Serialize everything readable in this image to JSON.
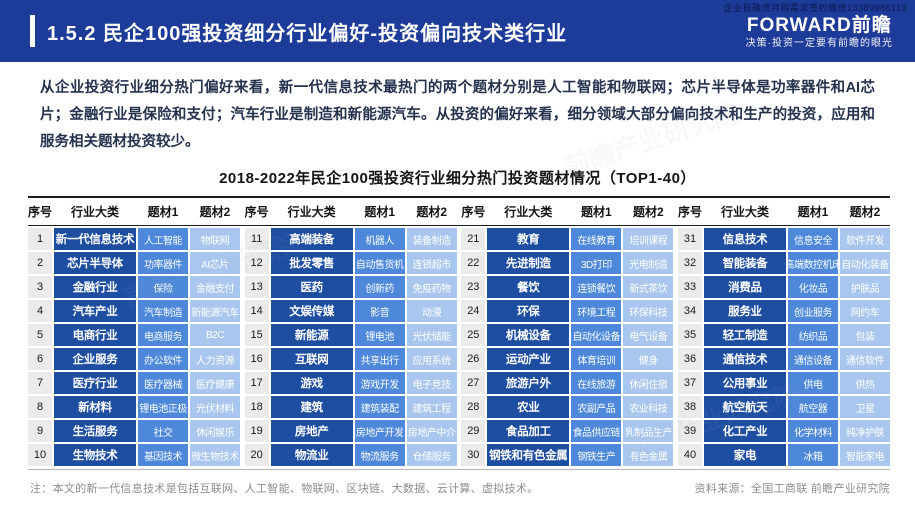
{
  "header": {
    "title": "1.5.2 民企100强投资细分行业偏好-投资偏向技术类行业",
    "contact": "企业投融资并购需求签约微信13389986113",
    "logo": "FORWARD前瞻",
    "tagline": "决策·投资一定要有前瞻的眼光"
  },
  "intro": "从企业投资行业细分热门偏好来看，新一代信息技术最热门的两个题材分别是人工智能和物联网；芯片半导体是功率器件和AI芯片；金融行业是保险和支付；汽车行业是制造和新能源汽车。从投资的偏好来看，细分领域大部分偏向技术和生产的投资，应用和服务相关题材投资较少。",
  "table": {
    "title": "2018-2022年民企100强投资行业细分热门投资题材情况（TOP1-40）",
    "headers": [
      "序号",
      "行业大类",
      "题材1",
      "题材2"
    ],
    "groups": [
      [
        {
          "no": "1",
          "category": "新一代信息技术",
          "topic1": "人工智能",
          "topic2": "物联网"
        },
        {
          "no": "2",
          "category": "芯片半导体",
          "topic1": "功率器件",
          "topic2": "AI芯片"
        },
        {
          "no": "3",
          "category": "金融行业",
          "topic1": "保险",
          "topic2": "金融支付"
        },
        {
          "no": "4",
          "category": "汽车产业",
          "topic1": "汽车制造",
          "topic2": "新能源汽车"
        },
        {
          "no": "5",
          "category": "电商行业",
          "topic1": "电商服务",
          "topic2": "B2C"
        },
        {
          "no": "6",
          "category": "企业服务",
          "topic1": "办公软件",
          "topic2": "人力资源"
        },
        {
          "no": "7",
          "category": "医疗行业",
          "topic1": "医疗器械",
          "topic2": "医疗健康"
        },
        {
          "no": "8",
          "category": "新材料",
          "topic1": "锂电池正极",
          "topic2": "光伏材料"
        },
        {
          "no": "9",
          "category": "生活服务",
          "topic1": "社交",
          "topic2": "休闲娱乐"
        },
        {
          "no": "10",
          "category": "生物技术",
          "topic1": "基因技术",
          "topic2": "微生物技术"
        }
      ],
      [
        {
          "no": "11",
          "category": "高端装备",
          "topic1": "机器人",
          "topic2": "装备制造"
        },
        {
          "no": "12",
          "category": "批发零售",
          "topic1": "自动售货机",
          "topic2": "连锁超市"
        },
        {
          "no": "13",
          "category": "医药",
          "topic1": "创新药",
          "topic2": "免疫药物"
        },
        {
          "no": "14",
          "category": "文娱传媒",
          "topic1": "影音",
          "topic2": "动漫"
        },
        {
          "no": "15",
          "category": "新能源",
          "topic1": "锂电池",
          "topic2": "光伏储能"
        },
        {
          "no": "16",
          "category": "互联网",
          "topic1": "共享出行",
          "topic2": "应用系统"
        },
        {
          "no": "17",
          "category": "游戏",
          "topic1": "游戏开发",
          "topic2": "电子竞技"
        },
        {
          "no": "18",
          "category": "建筑",
          "topic1": "建筑装配",
          "topic2": "建筑工程"
        },
        {
          "no": "19",
          "category": "房地产",
          "topic1": "房地产开发",
          "topic2": "房地产中介"
        },
        {
          "no": "20",
          "category": "物流业",
          "topic1": "物流服务",
          "topic2": "仓储服务"
        }
      ],
      [
        {
          "no": "21",
          "category": "教育",
          "topic1": "在线教育",
          "topic2": "培训课程"
        },
        {
          "no": "22",
          "category": "先进制造",
          "topic1": "3D打印",
          "topic2": "光电制造"
        },
        {
          "no": "23",
          "category": "餐饮",
          "topic1": "连锁餐饮",
          "topic2": "新式茶饮"
        },
        {
          "no": "24",
          "category": "环保",
          "topic1": "环境工程",
          "topic2": "环保科技"
        },
        {
          "no": "25",
          "category": "机械设备",
          "topic1": "自动化设备",
          "topic2": "电气设备"
        },
        {
          "no": "26",
          "category": "运动产业",
          "topic1": "体育培训",
          "topic2": "健身"
        },
        {
          "no": "27",
          "category": "旅游户外",
          "topic1": "在线旅游",
          "topic2": "休闲住宿"
        },
        {
          "no": "28",
          "category": "农业",
          "topic1": "农副产品",
          "topic2": "农业科技"
        },
        {
          "no": "29",
          "category": "食品加工",
          "topic1": "食品供应链",
          "topic2": "乳制品生产"
        },
        {
          "no": "30",
          "category": "钢铁和有色金属",
          "topic1": "钢铁生产",
          "topic2": "有色金属"
        }
      ],
      [
        {
          "no": "31",
          "category": "信息技术",
          "topic1": "信息安全",
          "topic2": "软件开发"
        },
        {
          "no": "32",
          "category": "智能装备",
          "topic1": "高端数控机床",
          "topic2": "自动化装备"
        },
        {
          "no": "33",
          "category": "消费品",
          "topic1": "化妆品",
          "topic2": "护肤品"
        },
        {
          "no": "34",
          "category": "服务业",
          "topic1": "创业服务",
          "topic2": "网约车"
        },
        {
          "no": "35",
          "category": "轻工制造",
          "topic1": "纺织品",
          "topic2": "包装"
        },
        {
          "no": "36",
          "category": "通信技术",
          "topic1": "通信设备",
          "topic2": "通信软件"
        },
        {
          "no": "37",
          "category": "公用事业",
          "topic1": "供电",
          "topic2": "供热"
        },
        {
          "no": "38",
          "category": "航空航天",
          "topic1": "航空器",
          "topic2": "卫星"
        },
        {
          "no": "39",
          "category": "化工产业",
          "topic1": "化学材料",
          "topic2": "纯净护肤"
        },
        {
          "no": "40",
          "category": "家电",
          "topic1": "冰箱",
          "topic2": "智能家电"
        }
      ]
    ]
  },
  "footer": {
    "note": "注：本文的新一代信息技术是包括互联网、人工智能、物联网、区块链、大数据、云计算、虚拟技术。",
    "source": "资料来源：全国工商联  前瞻产业研究院"
  },
  "watermark": "前瞻产业研究院",
  "colors": {
    "topbar_bg": "#1d3b99",
    "category_bg": "#1e4ea2",
    "topic1_bg": "#4d88da",
    "topic2_bg": "#a9c7ee",
    "index_bg": "#ebebeb",
    "header_text": "#ffffff",
    "body_text": "#25324e",
    "footer_text": "#8c8c8c"
  }
}
